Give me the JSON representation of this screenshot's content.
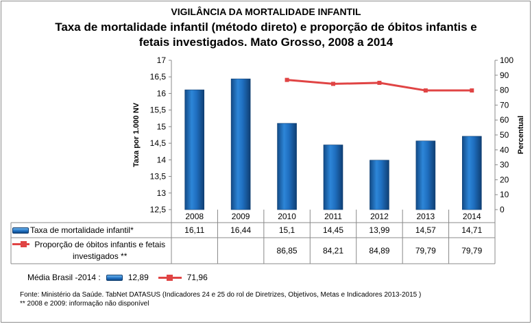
{
  "title": "VIGILÂNCIA DA MORTALIDADE INFANTIL",
  "subtitle_line1": "Taxa de mortalidade infantil (método direto) e proporção de óbitos infantis e",
  "subtitle_line2": "fetais investigados. Mato Grosso, 2008 a 2014",
  "chart_data": {
    "type": "bar+line",
    "categories": [
      "2008",
      "2009",
      "2010",
      "2011",
      "2012",
      "2013",
      "2014"
    ],
    "series": [
      {
        "name": "Taxa de mortalidade infantil*",
        "type": "bar",
        "axis": "left",
        "color": "#1f6fc0",
        "values": [
          16.11,
          16.44,
          15.1,
          14.45,
          13.99,
          14.57,
          14.71
        ],
        "labels": [
          "16,11",
          "16,44",
          "15,1",
          "14,45",
          "13,99",
          "14,57",
          "14,71"
        ]
      },
      {
        "name": "Proporção de óbitos infantis e fetais investigados **",
        "type": "line",
        "axis": "right",
        "color": "#e04444",
        "values": [
          null,
          null,
          86.85,
          84.21,
          84.89,
          79.79,
          79.79
        ],
        "labels": [
          "",
          "",
          "86,85",
          "84,21",
          "84,89",
          "79,79",
          "79,79"
        ]
      }
    ],
    "ylabel": "Taxa por 1.000 NV",
    "y2label": "Percentual",
    "ylim": [
      12.5,
      17
    ],
    "y2lim": [
      0,
      100
    ],
    "yticks": [
      "12,5",
      "13",
      "13,5",
      "14",
      "14,5",
      "15",
      "15,5",
      "16",
      "16,5",
      "17"
    ],
    "y2ticks": [
      "0",
      "10",
      "20",
      "30",
      "40",
      "50",
      "60",
      "70",
      "80",
      "90",
      "100"
    ],
    "grid": false
  },
  "legend": {
    "label": "Média Brasil -2014 :",
    "bar_value": "12,89",
    "line_value": "71,96"
  },
  "source": "Fonte: Ministério da Saúde. TabNet DATASUS (Indicadores  24 e 25 do rol de Diretrizes, Objetivos, Metas e Indicadores 2013-2015 )",
  "note": "** 2008 e 2009: informação não disponível"
}
